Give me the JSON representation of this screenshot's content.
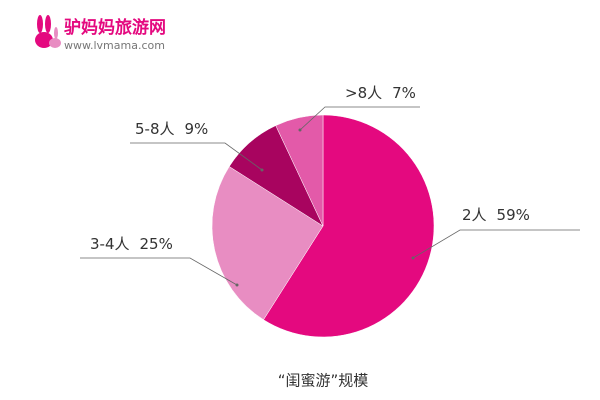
{
  "logo": {
    "name": "驴妈妈旅游网",
    "url": "www.lvmama.com"
  },
  "chart_data": {
    "type": "pie",
    "title": "“闺蜜游”规模",
    "categories": [
      "2人",
      "3-4人",
      "5-8人",
      ">8人"
    ],
    "values": [
      59,
      25,
      9,
      7
    ],
    "value_labels": [
      "59%",
      "25%",
      "9%",
      "7%"
    ],
    "colors": [
      "#e4097f",
      "#e88dc2",
      "#a8045f",
      "#e35aa9"
    ]
  }
}
